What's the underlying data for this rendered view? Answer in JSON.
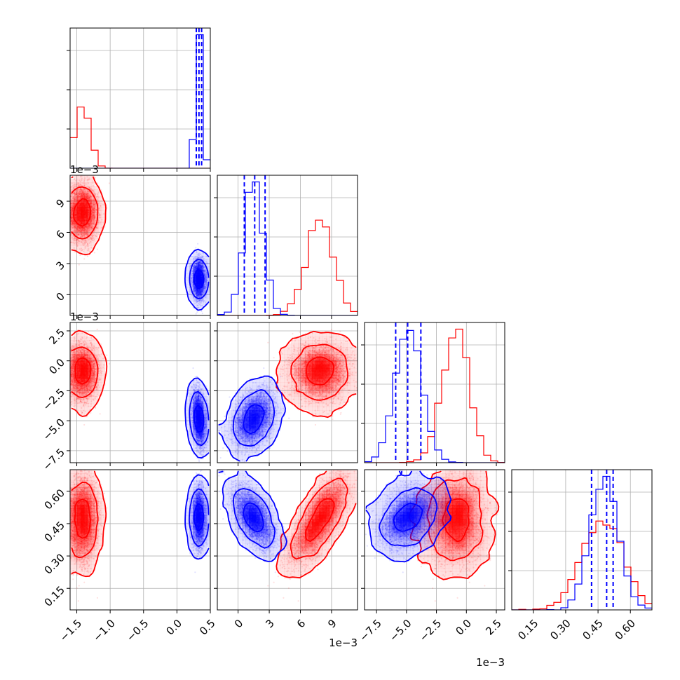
{
  "chart_data": {
    "type": "corner",
    "title": "",
    "colors": {
      "red": "#ff0000",
      "blue": "#0000ff",
      "grid": "#b0b0b0"
    },
    "grid": true,
    "params": [
      {
        "lim": [
          -1.6,
          0.5
        ],
        "ticks": [
          -1.5,
          -1.0,
          -0.5,
          0.0,
          0.5
        ],
        "tick_labels": [
          "−1.5",
          "−1.0",
          "−0.5",
          "0.0",
          "0.5"
        ],
        "offset": ""
      },
      {
        "lim": [
          -0.002,
          0.0115
        ],
        "ticks": [
          0,
          0.003,
          0.006,
          0.009
        ],
        "tick_labels": [
          "0",
          "3",
          "6",
          "9"
        ],
        "offset": "1e−3"
      },
      {
        "lim": [
          -0.0085,
          0.0032
        ],
        "ticks": [
          -0.0075,
          -0.005,
          -0.0025,
          0.0,
          0.0025
        ],
        "tick_labels": [
          "−7.5",
          "−5.0",
          "−2.5",
          "0.0",
          "2.5"
        ],
        "offset": "1e−3"
      },
      {
        "lim": [
          0.05,
          0.7
        ],
        "ticks": [
          0.15,
          0.3,
          0.45,
          0.6
        ],
        "tick_labels": [
          "0.15",
          "0.30",
          "0.45",
          "0.60"
        ],
        "offset": ""
      }
    ],
    "series": [
      {
        "color": "red",
        "mean": [
          -1.41,
          0.0079,
          -0.0009,
          0.47
        ],
        "sd": [
          0.11,
          0.0013,
          0.0011,
          0.095
        ],
        "corr": [
          [
            1,
            0,
            0,
            0
          ],
          [
            0,
            1,
            0,
            0.75
          ],
          [
            0,
            0,
            1,
            0
          ],
          [
            0,
            0.75,
            0,
            1
          ]
        ]
      },
      {
        "color": "blue",
        "mean": [
          0.33,
          0.0015,
          -0.0048,
          0.48
        ],
        "sd": [
          0.04,
          0.0009,
          0.0011,
          0.065
        ],
        "corr": [
          [
            1,
            0,
            -0.3,
            0
          ],
          [
            0,
            1,
            0.35,
            -0.55
          ],
          [
            -0.3,
            0.35,
            1,
            0.3
          ],
          [
            0,
            -0.55,
            0.3,
            1
          ]
        ]
      }
    ],
    "quantile_lines": [
      [
        0.29,
        0.33,
        0.37
      ],
      [
        0.0006,
        0.0016,
        0.0026
      ],
      [
        -0.0059,
        -0.0049,
        -0.0038
      ],
      [
        0.42,
        0.49,
        0.52
      ]
    ]
  }
}
